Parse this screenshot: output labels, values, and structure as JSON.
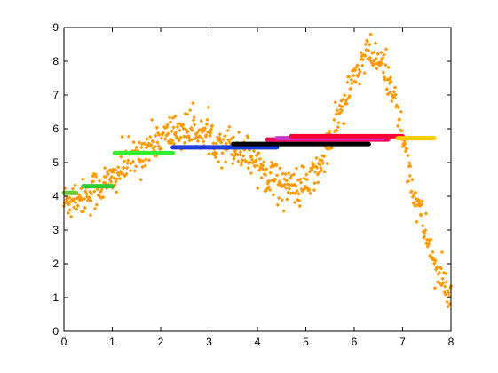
{
  "chart_data": {
    "type": "scatter",
    "title": "",
    "xlabel": "",
    "ylabel": "",
    "xlim": [
      0,
      8
    ],
    "ylim": [
      0,
      9
    ],
    "x_ticks": [
      "0",
      "1",
      "2",
      "3",
      "4",
      "5",
      "6",
      "7",
      "8"
    ],
    "y_ticks": [
      "0",
      "1",
      "2",
      "3",
      "4",
      "5",
      "6",
      "7",
      "8",
      "9"
    ],
    "grid": false,
    "legend": "none",
    "scatter_color": "#ff9900",
    "scatter_curve": {
      "description": "noisy samples of a smooth curve",
      "x": [
        0.0,
        0.25,
        0.5,
        0.75,
        1.0,
        1.25,
        1.5,
        1.75,
        2.0,
        2.25,
        2.5,
        2.75,
        3.0,
        3.25,
        3.5,
        3.75,
        4.0,
        4.25,
        4.5,
        4.75,
        5.0,
        5.25,
        5.5,
        5.75,
        6.0,
        6.25,
        6.5,
        6.75,
        7.0,
        7.25,
        7.5,
        7.75,
        8.0
      ],
      "y": [
        3.8,
        4.0,
        4.1,
        4.3,
        4.5,
        4.9,
        5.2,
        5.5,
        5.7,
        5.9,
        6.0,
        5.9,
        5.8,
        5.6,
        5.5,
        5.3,
        5.0,
        4.6,
        4.4,
        4.2,
        4.3,
        4.8,
        5.6,
        6.6,
        7.5,
        8.2,
        8.0,
        7.4,
        5.8,
        4.0,
        2.8,
        1.6,
        1.1
      ],
      "noise": 0.35,
      "count": 700
    },
    "segments": [
      {
        "color": "#66cc33",
        "x": [
          0.0,
          0.25
        ],
        "y": 4.1
      },
      {
        "color": "#33cc33",
        "x": [
          0.4,
          1.0
        ],
        "y": 4.3
      },
      {
        "color": "#33ee33",
        "x": [
          1.05,
          2.25
        ],
        "y": 5.28
      },
      {
        "color": "#1a3cd8",
        "x": [
          2.25,
          4.4
        ],
        "y": 5.45
      },
      {
        "color": "#000000",
        "x": [
          3.5,
          6.3
        ],
        "y": 5.55
      },
      {
        "color": "#ff0055",
        "x": [
          4.2,
          6.7
        ],
        "y": 5.68
      },
      {
        "color": "#cc33cc",
        "x": [
          4.4,
          6.6
        ],
        "y": 5.72
      },
      {
        "color": "#ff0033",
        "x": [
          4.7,
          7.0
        ],
        "y": 5.78
      },
      {
        "color": "#ffcc00",
        "x": [
          6.9,
          7.65
        ],
        "y": 5.72
      }
    ]
  }
}
